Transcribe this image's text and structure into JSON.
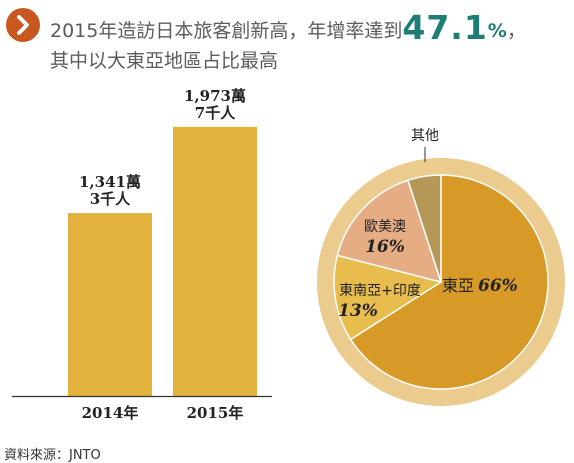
{
  "header": {
    "title_line1_prefix": "2015年造訪日本旅客創新高，年增率達到",
    "growth_value": "47.1",
    "growth_unit": "%",
    "title_line1_suffix": "，",
    "title_line2": "其中以大東亞地區占比最高"
  },
  "icons": {
    "badge": "chevron-right-icon"
  },
  "colors": {
    "title_accent": "#1e7e73",
    "badge": "#c8581f",
    "bar": "#e3b23c",
    "pie_east_asia": "#d89a26",
    "pie_southeast_asia_india": "#e8bd4e",
    "pie_europe_america_australia": "#e6ad84",
    "pie_other": "#b59758",
    "pie_ring": "#ebcb8e"
  },
  "chart_data": [
    {
      "type": "bar",
      "categories": [
        "2014年",
        "2015年"
      ],
      "values": [
        1341.3,
        1973.7
      ],
      "value_labels": [
        {
          "line1": "1,341萬",
          "line2": "3千人"
        },
        {
          "line1": "1,973萬",
          "line2": "7千人"
        }
      ]
    },
    {
      "type": "pie",
      "slices": [
        {
          "label": "東亞",
          "value": 66,
          "value_label": "66%"
        },
        {
          "label": "東南亞+印度",
          "value": 13,
          "value_label": "13%"
        },
        {
          "label": "歐美澳",
          "value": 16,
          "value_label": "16%"
        },
        {
          "label": "其他",
          "value": 5,
          "value_label": ""
        }
      ]
    }
  ],
  "footer": {
    "source": "資料來源：JNTO"
  }
}
